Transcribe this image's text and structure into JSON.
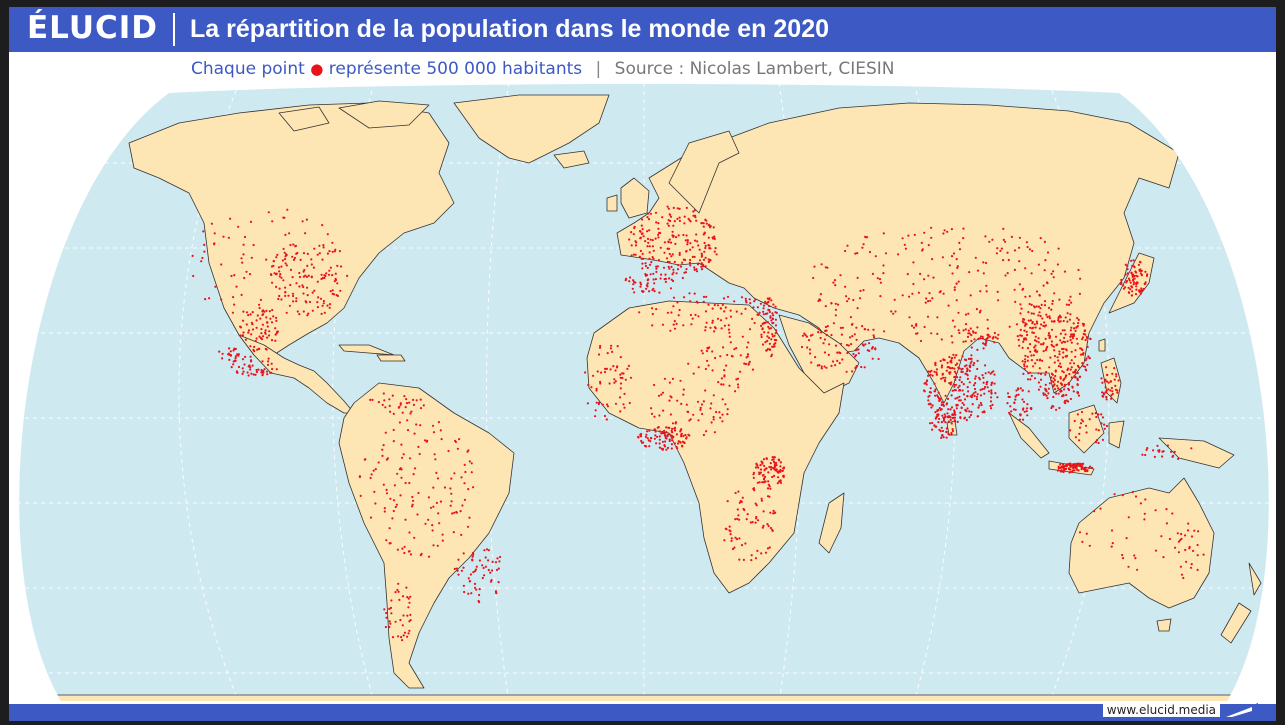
{
  "brand": {
    "logo": "ÉLUCID",
    "url": "www.elucid.media"
  },
  "title": "La répartition de la population dans le monde en 2020",
  "subtitle": {
    "prefix": "Chaque point",
    "dot_symbol": "●",
    "suffix": "représente 500 000 habitants",
    "separator": "|",
    "source": "Source : Nicolas Lambert, CIESIN"
  },
  "colors": {
    "header": "#3d5ac4",
    "ocean": "#cfe9f1",
    "land": "#fde5b4",
    "coast": "#333333",
    "dot": "#e8141b"
  },
  "legend": {
    "dot_value_inhabitants": 500000
  },
  "map": {
    "projection": "Robinson",
    "year": 2020,
    "graticule": true,
    "density_regions": [
      {
        "name": "India",
        "density": "very high"
      },
      {
        "name": "Eastern China",
        "density": "very high"
      },
      {
        "name": "Java",
        "density": "very high"
      },
      {
        "name": "Japan",
        "density": "high"
      },
      {
        "name": "Europe",
        "density": "high"
      },
      {
        "name": "Nile Valley",
        "density": "high"
      },
      {
        "name": "Nigeria",
        "density": "high"
      },
      {
        "name": "Great Lakes (Africa)",
        "density": "high"
      },
      {
        "name": "Eastern United States",
        "density": "medium"
      },
      {
        "name": "Mexico",
        "density": "medium"
      },
      {
        "name": "Southeast Brazil",
        "density": "medium"
      },
      {
        "name": "Philippines",
        "density": "medium"
      }
    ]
  }
}
